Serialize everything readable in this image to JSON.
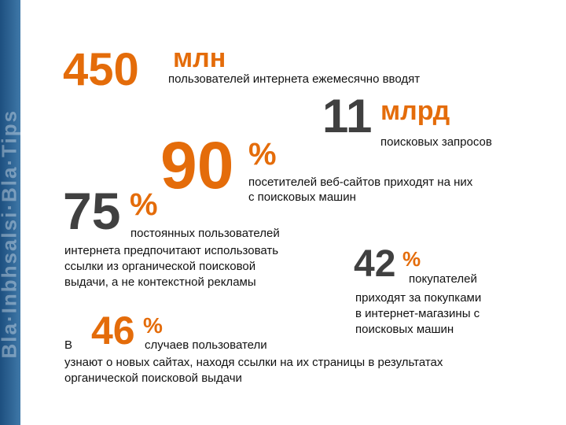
{
  "stats": {
    "s450": {
      "number": "450",
      "unit": "млн",
      "text": "пользователей интернета ежемесячно вводят"
    },
    "s11": {
      "number": "11",
      "unit": "млрд",
      "text": "поисковых запросов"
    },
    "s90": {
      "number": "90",
      "unit": "%",
      "text_line1": "посетителей веб-сайтов приходят на них",
      "text_line2": "с поисковых машин"
    },
    "s75": {
      "number": "75",
      "unit": "%",
      "text_line1": "постоянных пользователей",
      "text_line2": "интернета предпочитают использовать",
      "text_line3": "ссылки из органической поисковой",
      "text_line4": "выдачи, а не контекстной рекламы"
    },
    "s42": {
      "number": "42",
      "unit": "%",
      "text_line1": "покупателей",
      "text_line2": "приходят за покупками",
      "text_line3": "в интернет-магазины с",
      "text_line4": "поисковых машин"
    },
    "s46": {
      "prefix": "В",
      "number": "46",
      "unit": "%",
      "text_line1": "случаев пользователи",
      "text_line2": "узнают о новых сайтах, находя ссылки на их страницы в результатах",
      "text_line3": "органической поисковой выдачи"
    }
  },
  "colors": {
    "accent": "#e46c0a",
    "dark_number": "#404040",
    "text": "#111111",
    "stripe": "#2a5f8f"
  }
}
